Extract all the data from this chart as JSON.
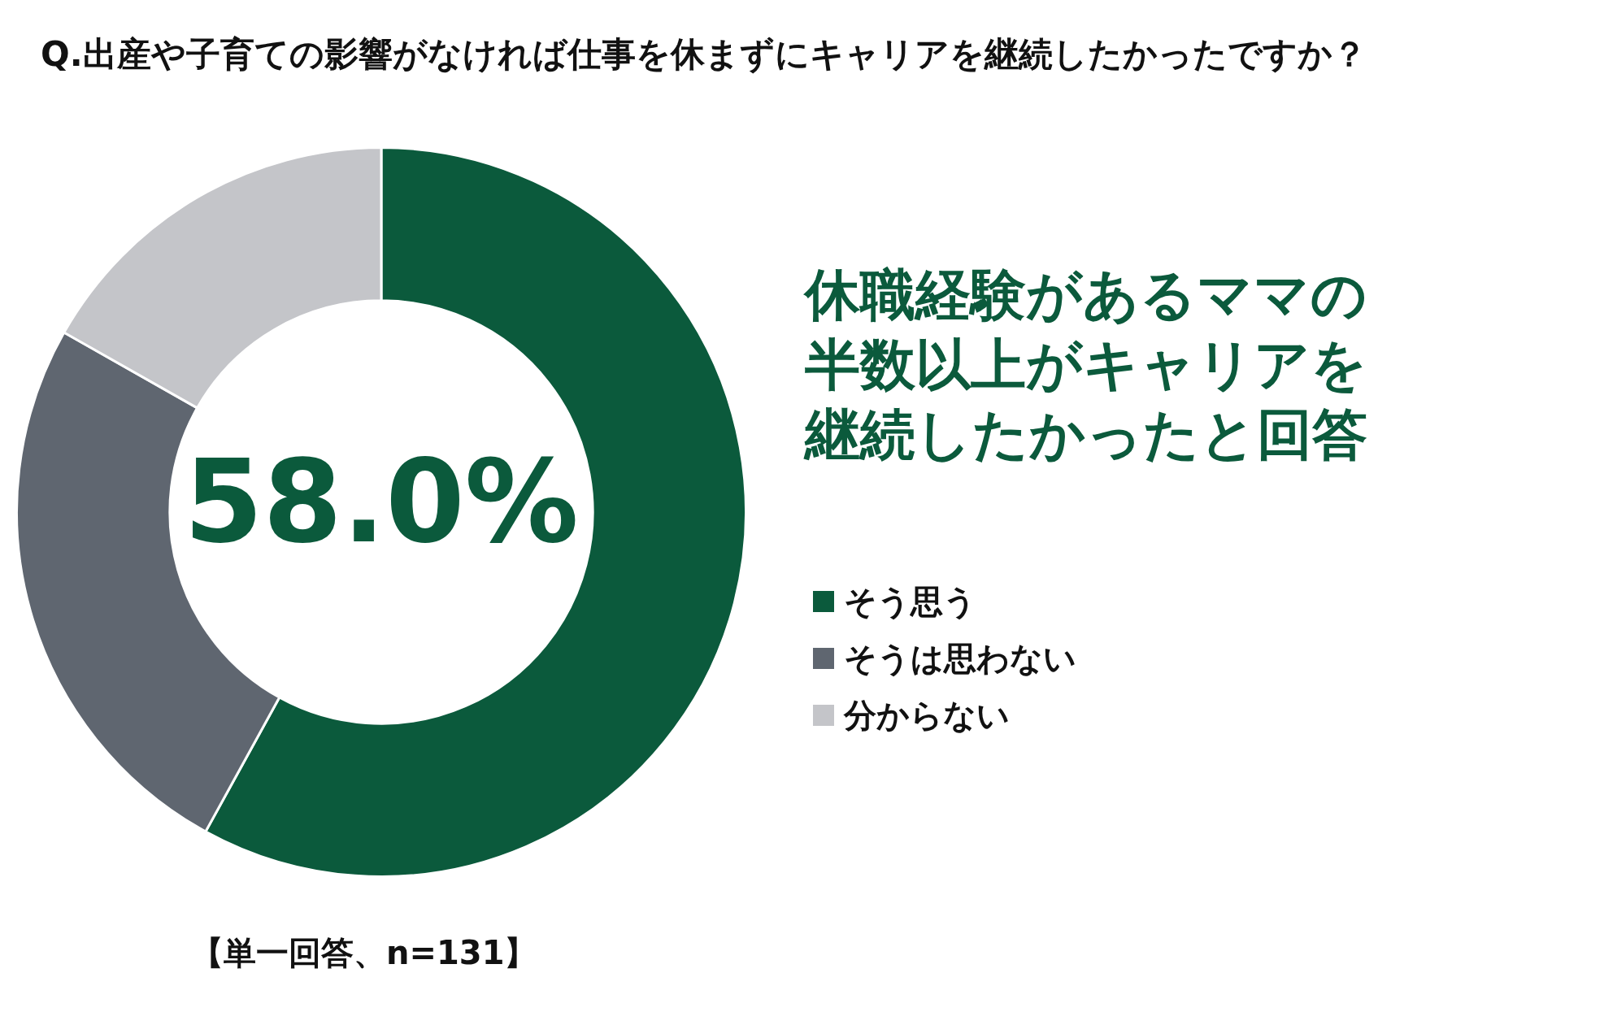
{
  "chart_data": {
    "type": "donut",
    "title": "Q.出産や子育ての影響がなければ仕事を休まずにキャリアを継続したかったですか？",
    "categories": [
      "そう思う",
      "そうは思わない",
      "分からない"
    ],
    "values": [
      58.0,
      25.2,
      16.8
    ],
    "colors": [
      "#0b5a3c",
      "#5f6670",
      "#c4c5c9"
    ],
    "value_labels": [
      "58.0%",
      null,
      null
    ],
    "legend": "right",
    "annotations": [
      "休職経験があるママの半数以上がキャリアを継続したかったと回答",
      "【単一回答、n=131】"
    ]
  }
}
